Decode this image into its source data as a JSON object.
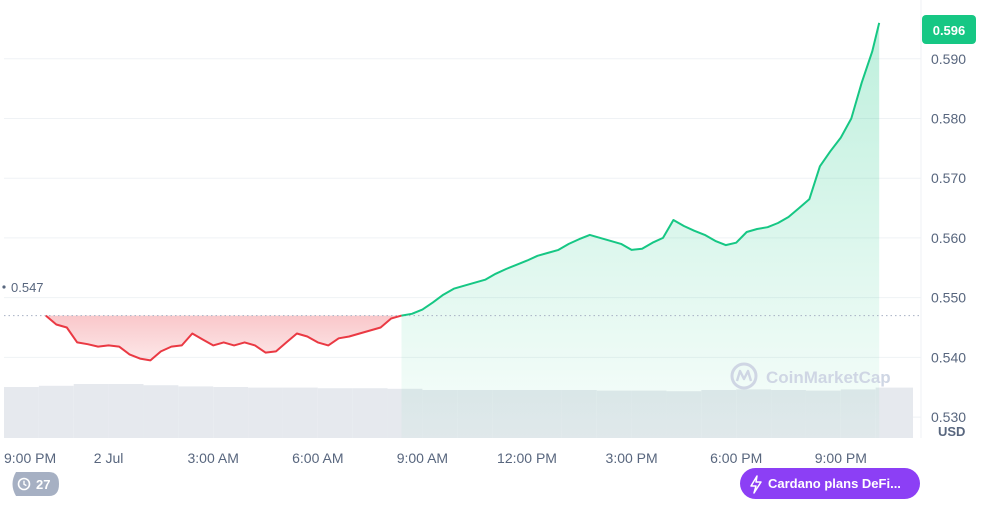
{
  "chart_data": {
    "type": "area",
    "unit_label": "USD",
    "reference_value": 0.547,
    "reference_label": "0.547",
    "last_value": 0.596,
    "last_label": "0.596",
    "ylim": [
      0.5265,
      0.5985
    ],
    "yticks": [
      {
        "value": 0.53,
        "label": "0.530"
      },
      {
        "value": 0.54,
        "label": "0.540"
      },
      {
        "value": 0.55,
        "label": "0.550"
      },
      {
        "value": 0.56,
        "label": "0.560"
      },
      {
        "value": 0.57,
        "label": "0.570"
      },
      {
        "value": 0.58,
        "label": "0.580"
      },
      {
        "value": 0.59,
        "label": "0.590"
      }
    ],
    "xlim_hours": [
      -1,
      25.3
    ],
    "xticks": [
      {
        "hour": -1,
        "label": "9:00 PM"
      },
      {
        "hour": 2,
        "label": "2 Jul"
      },
      {
        "hour": 5,
        "label": "3:00 AM"
      },
      {
        "hour": 8,
        "label": "6:00 AM"
      },
      {
        "hour": 11,
        "label": "9:00 AM"
      },
      {
        "hour": 14,
        "label": "12:00 PM"
      },
      {
        "hour": 17,
        "label": "3:00 PM"
      },
      {
        "hour": 20,
        "label": "6:00 PM"
      },
      {
        "hour": 23,
        "label": "9:00 PM"
      }
    ],
    "series": [
      {
        "x_hours": [
          0.2,
          0.5,
          0.8,
          1.1,
          1.4,
          1.7,
          2.0,
          2.3,
          2.6,
          2.9,
          3.2,
          3.5,
          3.8,
          4.1,
          4.4,
          4.7,
          5.0,
          5.3,
          5.6,
          5.9,
          6.2,
          6.5,
          6.8,
          7.1,
          7.4,
          7.7,
          8.0,
          8.3,
          8.6,
          8.9,
          9.2,
          9.5,
          9.8,
          10.1,
          10.4,
          10.7,
          11.0,
          11.3,
          11.6,
          11.9,
          12.2,
          12.5,
          12.8,
          13.1,
          13.4,
          13.7,
          14.0,
          14.3,
          14.6,
          14.9,
          15.2,
          15.5,
          15.8,
          16.1,
          16.4,
          16.7,
          17.0,
          17.3,
          17.6,
          17.9,
          18.2,
          18.5,
          18.8,
          19.1,
          19.4,
          19.7,
          20.0,
          20.3,
          20.6,
          20.9,
          21.2,
          21.5,
          21.8,
          22.1,
          22.4,
          22.7,
          23.0,
          23.3,
          23.6,
          23.9,
          24.1
        ],
        "values": [
          0.547,
          0.5455,
          0.545,
          0.5425,
          0.5422,
          0.5418,
          0.542,
          0.5418,
          0.5405,
          0.5398,
          0.5395,
          0.541,
          0.5418,
          0.542,
          0.544,
          0.543,
          0.542,
          0.5425,
          0.542,
          0.5425,
          0.542,
          0.5408,
          0.541,
          0.5425,
          0.544,
          0.5435,
          0.5425,
          0.542,
          0.5432,
          0.5435,
          0.544,
          0.5445,
          0.545,
          0.5465,
          0.547,
          0.5473,
          0.548,
          0.5492,
          0.5505,
          0.5515,
          0.552,
          0.5525,
          0.553,
          0.554,
          0.5548,
          0.5555,
          0.5562,
          0.557,
          0.5575,
          0.558,
          0.559,
          0.5598,
          0.5605,
          0.56,
          0.5595,
          0.559,
          0.558,
          0.5582,
          0.5592,
          0.56,
          0.563,
          0.562,
          0.5612,
          0.5605,
          0.5595,
          0.5588,
          0.5592,
          0.561,
          0.5615,
          0.5618,
          0.5625,
          0.5635,
          0.565,
          0.5665,
          0.572,
          0.5745,
          0.5768,
          0.58,
          0.586,
          0.5912,
          0.596
        ]
      }
    ],
    "volume": {
      "x_hours": [
        -1,
        0,
        1,
        2,
        3,
        4,
        5,
        6,
        7,
        8,
        9,
        10,
        11,
        12,
        13,
        14,
        15,
        16,
        17,
        18,
        19,
        20,
        21,
        22,
        23,
        24,
        25
      ],
      "values": [
        0.85,
        0.87,
        0.9,
        0.9,
        0.88,
        0.86,
        0.85,
        0.84,
        0.84,
        0.83,
        0.83,
        0.82,
        0.8,
        0.8,
        0.8,
        0.8,
        0.8,
        0.79,
        0.79,
        0.78,
        0.8,
        0.81,
        0.8,
        0.79,
        0.81,
        0.84,
        0.84
      ]
    },
    "watermark": "CoinMarketCap",
    "colors": {
      "up": "#16c784",
      "down": "#ea3943",
      "up_fill": "#16c784",
      "down_fill": "#ea3943",
      "grid": "#eff2f5",
      "volume": "#e6e9ee"
    }
  },
  "controls": {
    "history_count": "27",
    "news_pill": "Cardano plans DeFi..."
  }
}
